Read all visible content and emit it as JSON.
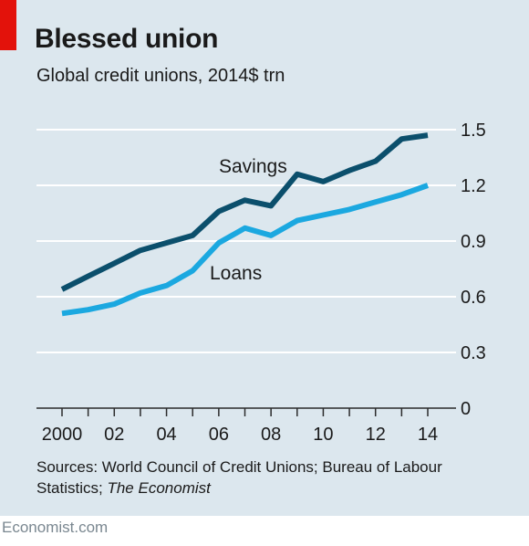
{
  "header": {
    "title": "Blessed union",
    "subtitle": "Global credit unions, 2014$ trn"
  },
  "colors": {
    "background": "#dce7ee",
    "accent_red": "#e3120b",
    "savings": "#0b4f6c",
    "loans": "#1ba8e0",
    "gridline": "#ffffff",
    "text": "#1a1a1a"
  },
  "chart_data": {
    "type": "line",
    "x": [
      2000,
      2001,
      2002,
      2003,
      2004,
      2005,
      2006,
      2007,
      2008,
      2009,
      2010,
      2011,
      2012,
      2013,
      2014
    ],
    "x_tick_labels": [
      "2000",
      "02",
      "04",
      "06",
      "08",
      "10",
      "12",
      "14"
    ],
    "y_ticks": [
      0,
      0.3,
      0.6,
      0.9,
      1.2,
      1.5
    ],
    "y_tick_labels": [
      "0",
      "0.3",
      "0.6",
      "0.9",
      "1.2",
      "1.5"
    ],
    "ylim": [
      0,
      1.5
    ],
    "grid": true,
    "series": [
      {
        "name": "Savings",
        "values": [
          0.64,
          0.71,
          0.78,
          0.85,
          0.89,
          0.93,
          1.06,
          1.12,
          1.09,
          1.26,
          1.22,
          1.28,
          1.33,
          1.45,
          1.47
        ]
      },
      {
        "name": "Loans",
        "values": [
          0.51,
          0.53,
          0.56,
          0.62,
          0.66,
          0.74,
          0.89,
          0.97,
          0.93,
          1.01,
          1.04,
          1.07,
          1.11,
          1.15,
          1.2
        ]
      }
    ]
  },
  "sources": {
    "prefix": "Sources: World Council of Credit Unions; Bureau of Labour Statistics; ",
    "italic": "The Economist"
  },
  "footer": "Economist.com"
}
